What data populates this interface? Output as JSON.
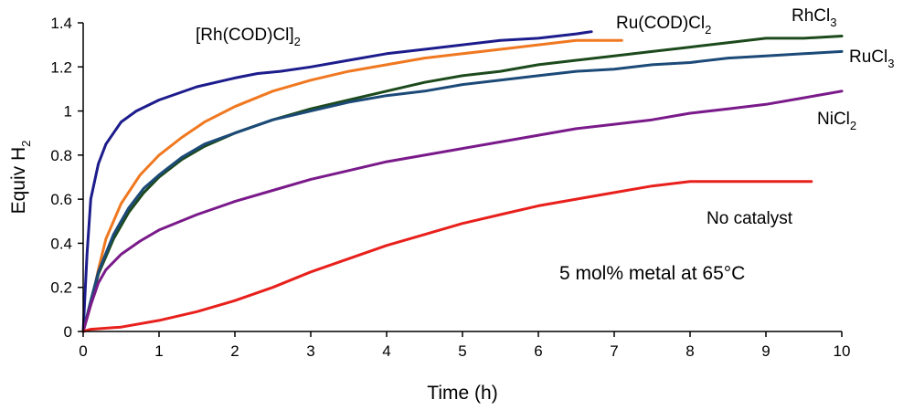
{
  "chart_data": {
    "type": "line",
    "title": "",
    "xlabel": "Time (h)",
    "ylabel": {
      "main": "Equiv H",
      "sub": "2"
    },
    "xlim": [
      0,
      10
    ],
    "ylim": [
      0,
      1.4
    ],
    "xticks": [
      "0",
      "1",
      "2",
      "3",
      "4",
      "5",
      "6",
      "7",
      "8",
      "9",
      "10"
    ],
    "yticks": [
      "0",
      "0.2",
      "0.4",
      "0.6",
      "0.8",
      "1",
      "1.2",
      "1.4"
    ],
    "grid": false,
    "legend": "none",
    "annotation": "5 mol% metal at 65°C",
    "series": [
      {
        "label_main": "[Rh(COD)Cl]",
        "label_sub": "2",
        "color": "#1c1c8c",
        "x": [
          0,
          0.05,
          0.1,
          0.2,
          0.3,
          0.5,
          0.7,
          1.0,
          1.5,
          2.0,
          2.3,
          2.6,
          3.0,
          3.5,
          4.0,
          4.5,
          5.0,
          5.5,
          6.0,
          6.5,
          6.7
        ],
        "y": [
          0,
          0.35,
          0.6,
          0.76,
          0.85,
          0.95,
          1.0,
          1.05,
          1.11,
          1.15,
          1.17,
          1.18,
          1.2,
          1.23,
          1.26,
          1.28,
          1.3,
          1.32,
          1.33,
          1.35,
          1.36
        ]
      },
      {
        "label_main": "Ru(COD)Cl",
        "label_sub": "2",
        "color": "#f07820",
        "x": [
          0,
          0.1,
          0.2,
          0.3,
          0.5,
          0.75,
          1.0,
          1.3,
          1.6,
          2.0,
          2.5,
          3.0,
          3.5,
          4.0,
          4.5,
          5.0,
          5.5,
          6.0,
          6.5,
          7.1
        ],
        "y": [
          0,
          0.12,
          0.28,
          0.42,
          0.58,
          0.71,
          0.8,
          0.88,
          0.95,
          1.02,
          1.09,
          1.14,
          1.18,
          1.21,
          1.24,
          1.26,
          1.28,
          1.3,
          1.32,
          1.32
        ]
      },
      {
        "label_main": "RhCl",
        "label_sub": "3",
        "color": "#1c4a1c",
        "x": [
          0,
          0.1,
          0.2,
          0.4,
          0.6,
          0.8,
          1.0,
          1.3,
          1.6,
          2.0,
          2.5,
          3.0,
          3.5,
          4.0,
          4.5,
          5.0,
          5.5,
          6.0,
          6.5,
          7.0,
          7.5,
          8.0,
          8.5,
          9.0,
          9.5,
          10.0
        ],
        "y": [
          0,
          0.13,
          0.26,
          0.42,
          0.54,
          0.63,
          0.7,
          0.78,
          0.84,
          0.9,
          0.96,
          1.01,
          1.05,
          1.09,
          1.13,
          1.16,
          1.18,
          1.21,
          1.23,
          1.25,
          1.27,
          1.29,
          1.31,
          1.33,
          1.33,
          1.34
        ]
      },
      {
        "label_main": "RuCl",
        "label_sub": "3",
        "color": "#1c4a78",
        "x": [
          0,
          0.1,
          0.2,
          0.4,
          0.6,
          0.8,
          1.0,
          1.3,
          1.6,
          2.0,
          2.5,
          3.0,
          3.5,
          4.0,
          4.5,
          5.0,
          5.5,
          6.0,
          6.5,
          7.0,
          7.5,
          8.0,
          8.5,
          9.0,
          9.5,
          10.0
        ],
        "y": [
          0,
          0.14,
          0.27,
          0.44,
          0.56,
          0.65,
          0.71,
          0.79,
          0.85,
          0.9,
          0.96,
          1.0,
          1.04,
          1.07,
          1.09,
          1.12,
          1.14,
          1.16,
          1.18,
          1.19,
          1.21,
          1.22,
          1.24,
          1.25,
          1.26,
          1.27
        ]
      },
      {
        "label_main": "NiCl",
        "label_sub": "2",
        "color": "#7a1a8a",
        "x": [
          0,
          0.1,
          0.2,
          0.3,
          0.5,
          0.75,
          1.0,
          1.5,
          2.0,
          2.5,
          3.0,
          3.5,
          4.0,
          4.5,
          5.0,
          5.5,
          6.0,
          6.5,
          7.0,
          7.5,
          8.0,
          8.5,
          9.0,
          9.5,
          10.0
        ],
        "y": [
          0,
          0.12,
          0.22,
          0.28,
          0.35,
          0.41,
          0.46,
          0.53,
          0.59,
          0.64,
          0.69,
          0.73,
          0.77,
          0.8,
          0.83,
          0.86,
          0.89,
          0.92,
          0.94,
          0.96,
          0.99,
          1.01,
          1.03,
          1.06,
          1.09
        ]
      },
      {
        "label_main": "No catalyst",
        "label_sub": "",
        "color": "#e8201c",
        "x": [
          0,
          0.1,
          0.5,
          1.0,
          1.5,
          2.0,
          2.5,
          3.0,
          3.5,
          4.0,
          4.5,
          5.0,
          5.5,
          6.0,
          6.5,
          7.0,
          7.5,
          8.0,
          8.5,
          9.0,
          9.6
        ],
        "y": [
          0,
          0.01,
          0.02,
          0.05,
          0.09,
          0.14,
          0.2,
          0.27,
          0.33,
          0.39,
          0.44,
          0.49,
          0.53,
          0.57,
          0.6,
          0.63,
          0.66,
          0.68,
          0.68,
          0.68,
          0.68
        ]
      }
    ]
  }
}
